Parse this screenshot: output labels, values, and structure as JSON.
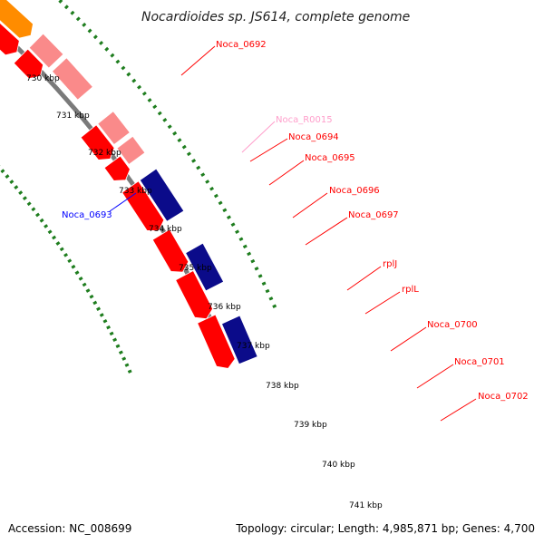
{
  "title": "Nocardioides sp. JS614, complete genome",
  "footer": {
    "accession": "Accession: NC_008699",
    "summary": "Topology: circular; Length: 4,985,871 bp; Genes: 4,700"
  },
  "colors": {
    "backbone": "#7a7a7a",
    "tick_line": "#1e7d1e",
    "cds_forward": "#ff0000",
    "cds_reverse": "#0000ff",
    "rRNA": "#ffb6c8",
    "tRNA": "#9ad80a",
    "cog_translation": "#fa8a8a",
    "cog_orange": "#ff8c00",
    "cog_cyan": "#00e5e5",
    "cog_steel": "#4a7fb0",
    "cog_navy": "#0b0b8a"
  },
  "kbp_ticks": [
    "730 kbp",
    "731 kbp",
    "732 kbp",
    "733 kbp",
    "734 kbp",
    "735 kbp",
    "736 kbp",
    "737 kbp",
    "738 kbp",
    "739 kbp",
    "740 kbp",
    "741 kbp"
  ],
  "features": [
    {
      "name": "Noca_0692",
      "color": "#ff0000"
    },
    {
      "name": "Noca_R0015",
      "color": "#ff9ecb"
    },
    {
      "name": "Noca_0694",
      "color": "#ff0000"
    },
    {
      "name": "Noca_0695",
      "color": "#ff0000"
    },
    {
      "name": "Noca_0696",
      "color": "#ff0000"
    },
    {
      "name": "Noca_0697",
      "color": "#ff0000"
    },
    {
      "name": "rplJ",
      "color": "#ff0000"
    },
    {
      "name": "rplL",
      "color": "#ff0000"
    },
    {
      "name": "Noca_0700",
      "color": "#ff0000"
    },
    {
      "name": "Noca_0701",
      "color": "#ff0000"
    },
    {
      "name": "Noca_0702",
      "color": "#ff0000"
    },
    {
      "name": "Noca_0693",
      "color": "#0000ff"
    }
  ]
}
